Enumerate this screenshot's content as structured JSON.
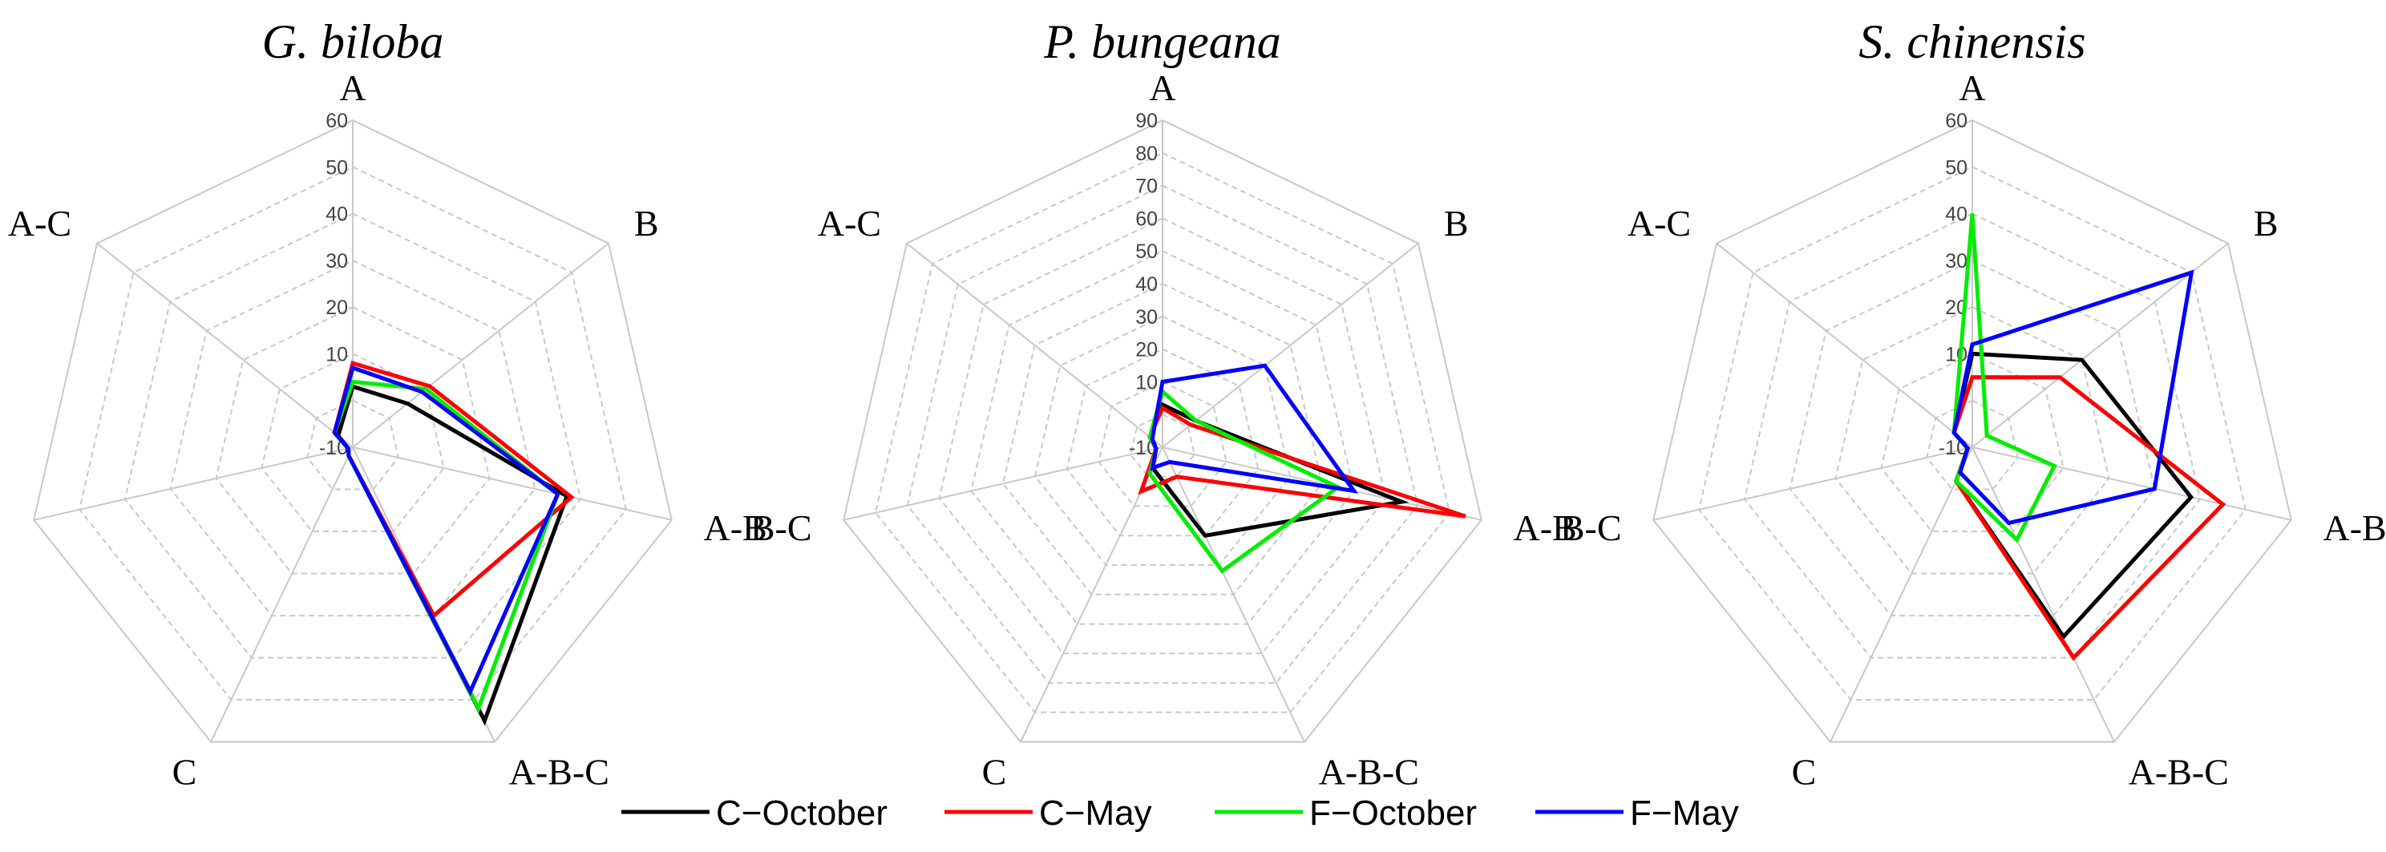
{
  "chart_data": [
    {
      "type": "radar",
      "title": "G. biloba",
      "axes": [
        "A",
        "B",
        "A-B",
        "A-B-C",
        "C",
        "B-C",
        "A-C"
      ],
      "rlim": [
        -10,
        60
      ],
      "ticks": [
        "-10",
        "10",
        "20",
        "30",
        "40",
        "50",
        "60"
      ],
      "grid": true,
      "series": [
        {
          "name": "C−October",
          "color": "#000000",
          "values": [
            3,
            5,
            37,
            55,
            -8,
            -9,
            -6
          ]
        },
        {
          "name": "C−May",
          "color": "#ff0000",
          "values": [
            8,
            11,
            38,
            30,
            -8,
            -9,
            -5
          ]
        },
        {
          "name": "F−October",
          "color": "#00ee00",
          "values": [
            4,
            10,
            35,
            52,
            -8,
            -9,
            -5
          ]
        },
        {
          "name": "F−May",
          "color": "#0000ff",
          "values": [
            7,
            9,
            35,
            48,
            -8,
            -9,
            -5
          ]
        }
      ]
    },
    {
      "type": "radar",
      "title": "P. bungeana",
      "axes": [
        "A",
        "B",
        "A-B",
        "A-B-C",
        "C",
        "B-C",
        "A-C"
      ],
      "rlim": [
        -10,
        90
      ],
      "ticks": [
        "-10",
        "10",
        "20",
        "30",
        "40",
        "50",
        "60",
        "70",
        "80",
        "90"
      ],
      "grid": true,
      "series": [
        {
          "name": "C−October",
          "color": "#000000",
          "values": [
            3,
            3,
            65,
            20,
            -3,
            -8,
            -5
          ]
        },
        {
          "name": "C−May",
          "color": "#ff0000",
          "values": [
            2,
            1,
            85,
            0,
            5,
            -8,
            -5
          ]
        },
        {
          "name": "F−October",
          "color": "#00ee00",
          "values": [
            7,
            3,
            45,
            32,
            -1,
            -8,
            -5
          ]
        },
        {
          "name": "F−May",
          "color": "#0000ff",
          "values": [
            10,
            30,
            50,
            -5,
            -3,
            -8,
            -6
          ]
        }
      ]
    },
    {
      "type": "radar",
      "title": "S. chinensis",
      "axes": [
        "A",
        "B",
        "A-B",
        "A-B-C",
        "C",
        "B-C",
        "A-C"
      ],
      "rlim": [
        -10,
        60
      ],
      "ticks": [
        "-10",
        "10",
        "20",
        "30",
        "40",
        "50",
        "60"
      ],
      "grid": true,
      "series": [
        {
          "name": "C−October",
          "color": "#000000",
          "values": [
            10,
            20,
            38,
            35,
            -2,
            -9,
            -5
          ]
        },
        {
          "name": "C−May",
          "color": "#ff0000",
          "values": [
            5,
            14,
            45,
            40,
            -2,
            -9,
            -5
          ]
        },
        {
          "name": "F−October",
          "color": "#00ee00",
          "values": [
            40,
            -6,
            8,
            12,
            -2,
            -9,
            -5
          ]
        },
        {
          "name": "F−May",
          "color": "#0000ff",
          "values": [
            12,
            50,
            30,
            8,
            -4,
            -9,
            -5
          ]
        }
      ]
    }
  ],
  "legend": {
    "position": "bottom-center",
    "items": [
      {
        "label": "C−October",
        "color": "#000000"
      },
      {
        "label": "C−May",
        "color": "#ff0000"
      },
      {
        "label": "F−October",
        "color": "#00ee00"
      },
      {
        "label": "F−May",
        "color": "#0000ff"
      }
    ]
  }
}
